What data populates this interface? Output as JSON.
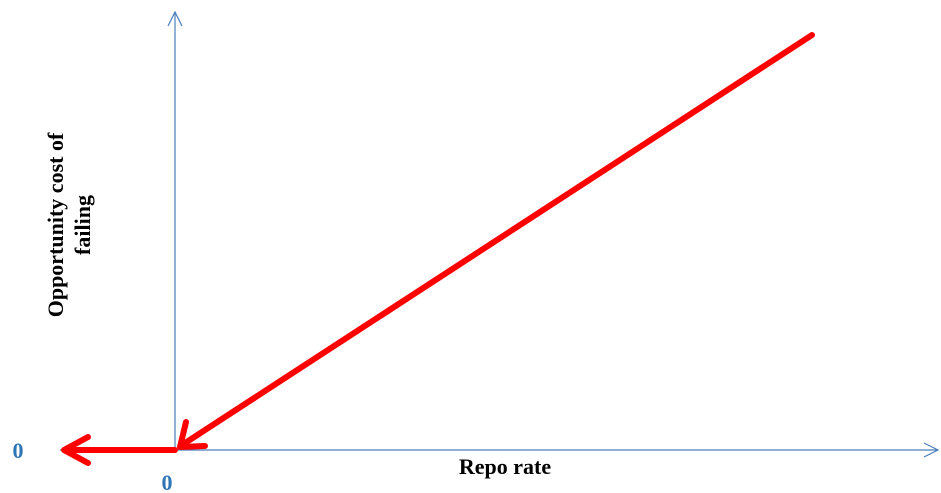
{
  "y_axis_label": {
    "lines": [
      "Opportunity cost of",
      "failing"
    ]
  },
  "x_axis_label": "Repo rate",
  "origin_labels": {
    "y": "0",
    "x": "0"
  }
}
